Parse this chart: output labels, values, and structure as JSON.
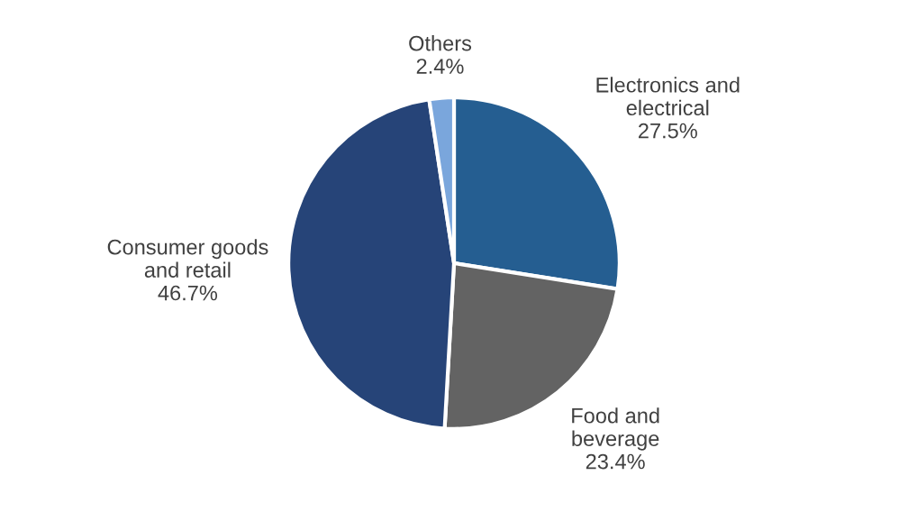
{
  "chart_data": {
    "type": "pie",
    "categories": [
      "Electronics and\nelectrical",
      "Food and\nbeverage",
      "Consumer goods\nand retail",
      "Others"
    ],
    "values": [
      27.5,
      23.4,
      46.7,
      2.4
    ],
    "value_labels": [
      "27.5%",
      "23.4%",
      "46.7%",
      "2.4%"
    ],
    "colors": [
      "#255e91",
      "#636363",
      "#264478",
      "#7aa6dc"
    ]
  }
}
